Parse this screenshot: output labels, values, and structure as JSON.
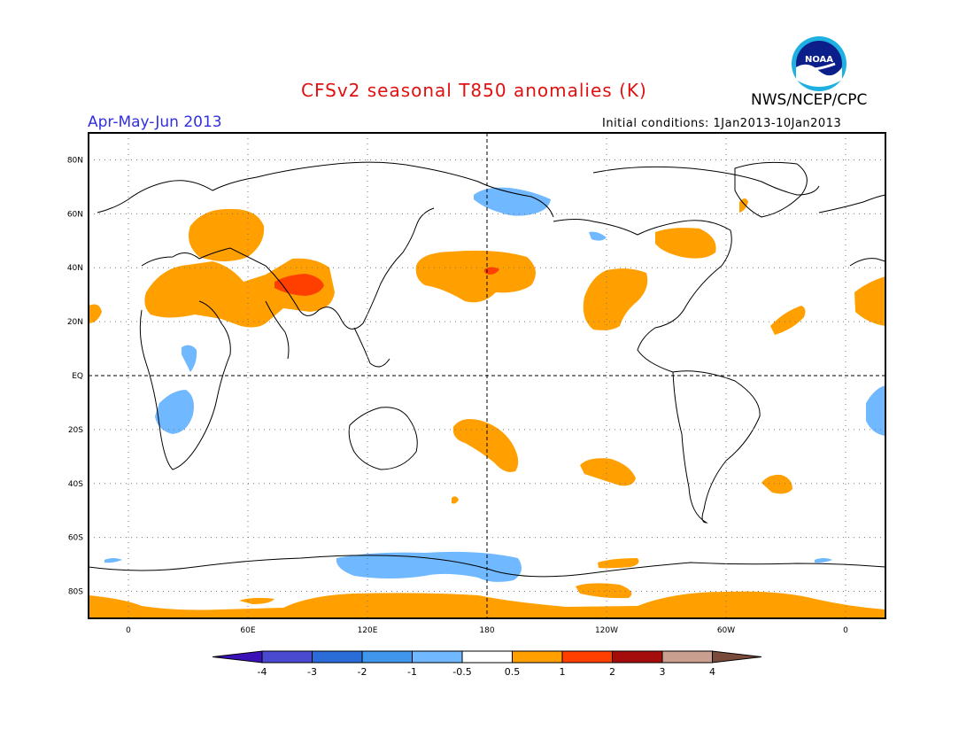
{
  "header": {
    "title": "CFSv2 seasonal T850 anomalies (K)",
    "agency": "NWS/NCEP/CPC",
    "logo_text": "NOAA",
    "period": "Apr-May-Jun 2013",
    "initial_conditions": "Initial conditions: 1Jan2013-10Jan2013"
  },
  "map": {
    "lat_labels": [
      "80N",
      "60N",
      "40N",
      "20N",
      "EQ",
      "20S",
      "40S",
      "60S",
      "80S"
    ],
    "lat_values": [
      80,
      60,
      40,
      20,
      0,
      -20,
      -40,
      -60,
      -80
    ],
    "lon_labels": [
      "0",
      "60E",
      "120E",
      "180",
      "120W",
      "60W",
      "0"
    ],
    "lon_values": [
      0,
      60,
      120,
      180,
      240,
      300,
      360
    ],
    "lon_range": [
      -20,
      380
    ],
    "lat_range": [
      -90,
      90
    ],
    "colors": {
      "land_outline": "#000000",
      "grid": "#777777",
      "warm": "#ff9f00",
      "hot": "#ff3f00",
      "cool": "#70b8ff"
    }
  },
  "colorbar": {
    "labels": [
      "-4",
      "-3",
      "-2",
      "-1",
      "-0.5",
      "0.5",
      "1",
      "2",
      "3",
      "4"
    ],
    "colors": [
      "#3b11b8",
      "#4a4ad0",
      "#2a6dd9",
      "#4095ec",
      "#70b8ff",
      "#ffffff",
      "#ff9f00",
      "#ff3f00",
      "#a50d0d",
      "#c9a090",
      "#7a4a3a"
    ]
  }
}
